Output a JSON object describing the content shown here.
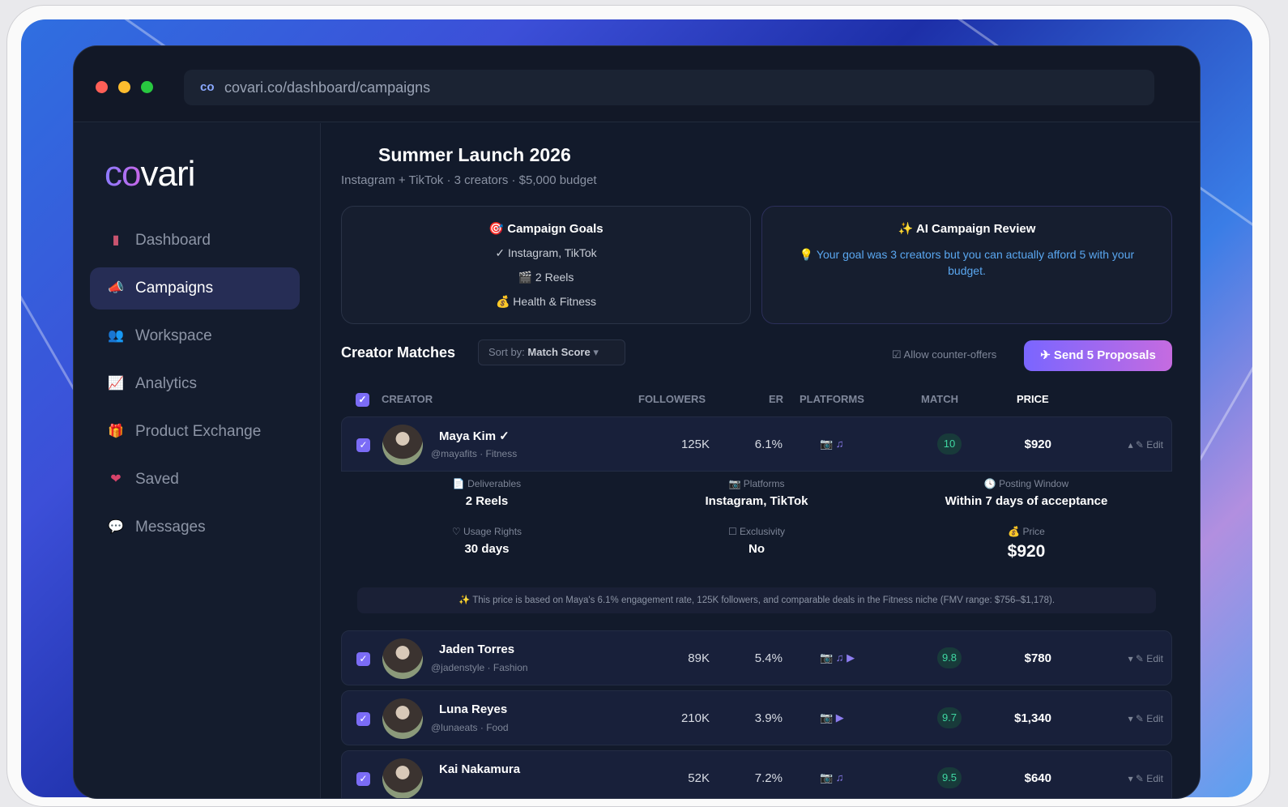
{
  "browser": {
    "url": "covari.co/dashboard/campaigns",
    "favicon": "co"
  },
  "sidebar": {
    "logo_a": "co",
    "logo_b": "vari",
    "items": [
      {
        "label": "Dashboard",
        "icon": "bar-chart-icon",
        "glyph": "▮"
      },
      {
        "label": "Campaigns",
        "icon": "megaphone-icon",
        "glyph": "📣",
        "active": true
      },
      {
        "label": "Workspace",
        "icon": "people-icon",
        "glyph": "👥"
      },
      {
        "label": "Analytics",
        "icon": "trend-chart-icon",
        "glyph": "📈"
      },
      {
        "label": "Product Exchange",
        "icon": "gift-icon",
        "glyph": "🎁"
      },
      {
        "label": "Saved",
        "icon": "heart-icon",
        "glyph": "❤"
      },
      {
        "label": "Messages",
        "icon": "speech-bubble-icon",
        "glyph": "💬"
      }
    ]
  },
  "campaign": {
    "title": "Summer Launch 2026",
    "subtitle": "Instagram + TikTok · 3 creators · $5,000 budget"
  },
  "goals": {
    "title": "🎯 Campaign Goals",
    "items": [
      "✓ Instagram, TikTok",
      "🎬 2 Reels",
      "💰 Health & Fitness"
    ]
  },
  "ai_review": {
    "title": "✨ AI Campaign Review",
    "text": "💡 Your goal was 3 creators but you can actually afford 5 with your budget."
  },
  "matches": {
    "title": "Creator Matches",
    "sort_label": "Sort by:",
    "sort_value": "Match Score",
    "allow": "☑ Allow counter-offers",
    "send": "✈ Send 5 Proposals",
    "columns": {
      "creator": "CREATOR",
      "followers": "FOLLOWERS",
      "er": "ER",
      "platforms": "PLATFORMS",
      "match": "MATCH",
      "price": "PRICE"
    },
    "rows": [
      {
        "name": "Maya Kim ✓",
        "handle": "@mayafits · Fitness",
        "followers": "125K",
        "er": "6.1%",
        "platforms": "📷 ♫",
        "match": "10",
        "price": "$920",
        "edit": "▴ ✎ Edit",
        "checked": true
      },
      {
        "name": "Jaden Torres",
        "handle": "@jadenstyle · Fashion",
        "followers": "89K",
        "er": "5.4%",
        "platforms": "📷 ♫ ▶",
        "match": "9.8",
        "price": "$780",
        "edit": "▾ ✎ Edit",
        "checked": true
      },
      {
        "name": "Luna Reyes",
        "handle": "@lunaeats · Food",
        "followers": "210K",
        "er": "3.9%",
        "platforms": "📷 ▶",
        "match": "9.7",
        "price": "$1,340",
        "edit": "▾ ✎ Edit",
        "checked": true
      },
      {
        "name": "Kai Nakamura",
        "handle": "",
        "followers": "52K",
        "er": "7.2%",
        "platforms": "📷 ♫",
        "match": "9.5",
        "price": "$640",
        "edit": "▾ ✎ Edit",
        "checked": true
      }
    ],
    "detail": {
      "deliverables_label": "📄 Deliverables",
      "deliverables": "2 Reels",
      "platforms_label": "📷 Platforms",
      "platforms": "Instagram, TikTok",
      "window_label": "🕓 Posting Window",
      "window": "Within 7 days of acceptance",
      "usage_label": "♡ Usage Rights",
      "usage": "30 days",
      "excl_label": "☐ Exclusivity",
      "excl": "No",
      "price_label": "💰 Price",
      "price": "$920",
      "note": "✨ This price is based on Maya's 6.1% engagement rate, 125K followers, and comparable deals in the Fitness niche (FMV range: $756–$1,178)."
    }
  },
  "colors": {
    "accent": "#7b6cf6",
    "match": "#3fd7a2",
    "ai_text": "#5aa7f0"
  }
}
